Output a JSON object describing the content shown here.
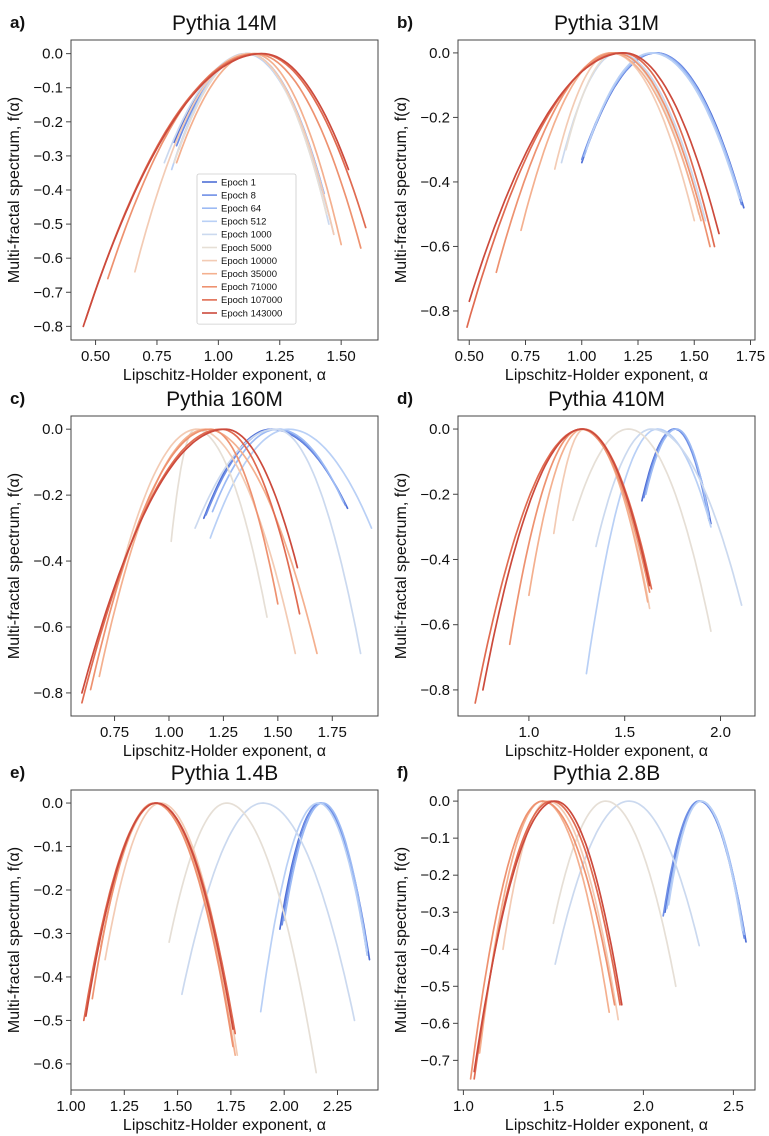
{
  "figure": {
    "legend_entries": [
      {
        "label": "Epoch 1",
        "color": "#4f6fd6"
      },
      {
        "label": "Epoch 8",
        "color": "#6f8fe6"
      },
      {
        "label": "Epoch 64",
        "color": "#9cbaf4"
      },
      {
        "label": "Epoch 512",
        "color": "#b9d0f6"
      },
      {
        "label": "Epoch 1000",
        "color": "#cbd9ef"
      },
      {
        "label": "Epoch 5000",
        "color": "#e6dfd6"
      },
      {
        "label": "Epoch 10000",
        "color": "#f3cbb4"
      },
      {
        "label": "Epoch 35000",
        "color": "#f4b08f"
      },
      {
        "label": "Epoch 71000",
        "color": "#ee9270"
      },
      {
        "label": "Epoch 107000",
        "color": "#e06b51"
      },
      {
        "label": "Epoch 143000",
        "color": "#cc4a3c"
      }
    ],
    "legend_location": "lower-right"
  },
  "chart_data": [
    {
      "type": "line",
      "panel_label": "a)",
      "title": "Pythia 14M",
      "xlabel": "Lipschitz-Holder exponent, α",
      "ylabel": "Multi-fractal spectrum, f(α)",
      "xlim": [
        0.4,
        1.65
      ],
      "ylim": [
        -0.84,
        0.04
      ],
      "xticks": [
        0.5,
        0.75,
        1.0,
        1.25,
        1.5
      ],
      "xtick_labels": [
        "0.50",
        "0.75",
        "1.00",
        "1.25",
        "1.50"
      ],
      "yticks": [
        0.0,
        -0.1,
        -0.2,
        -0.3,
        -0.4,
        -0.5,
        -0.6,
        -0.7,
        -0.8
      ],
      "ytick_labels": [
        "0.0",
        "−0.1",
        "−0.2",
        "−0.3",
        "−0.4",
        "−0.5",
        "−0.6",
        "−0.7",
        "−0.8"
      ],
      "grid": false,
      "legend": true,
      "series": [
        {
          "name": "Epoch 1",
          "a0": 1.12,
          "left": [
            0.82,
            -0.26
          ],
          "right": [
            1.43,
            -0.41
          ]
        },
        {
          "name": "Epoch 8",
          "a0": 1.12,
          "left": [
            0.83,
            -0.27
          ],
          "right": [
            1.42,
            -0.4
          ]
        },
        {
          "name": "Epoch 64",
          "a0": 1.12,
          "left": [
            0.84,
            -0.28
          ],
          "right": [
            1.43,
            -0.41
          ]
        },
        {
          "name": "Epoch 512",
          "a0": 1.11,
          "left": [
            0.81,
            -0.34
          ],
          "right": [
            1.47,
            -0.53
          ]
        },
        {
          "name": "Epoch 1000",
          "a0": 1.12,
          "left": [
            0.78,
            -0.32
          ],
          "right": [
            1.45,
            -0.5
          ]
        },
        {
          "name": "Epoch 5000",
          "a0": 1.12,
          "left": [
            0.82,
            -0.32
          ],
          "right": [
            1.44,
            -0.47
          ]
        },
        {
          "name": "Epoch 10000",
          "a0": 1.12,
          "left": [
            0.66,
            -0.64
          ],
          "right": [
            1.47,
            -0.53
          ]
        },
        {
          "name": "Epoch 35000",
          "a0": 1.14,
          "left": [
            0.83,
            -0.32
          ],
          "right": [
            1.5,
            -0.56
          ]
        },
        {
          "name": "Epoch 71000",
          "a0": 1.15,
          "left": [
            0.55,
            -0.66
          ],
          "right": [
            1.58,
            -0.57
          ]
        },
        {
          "name": "Epoch 107000",
          "a0": 1.17,
          "left": [
            0.46,
            -0.78
          ],
          "right": [
            1.6,
            -0.51
          ]
        },
        {
          "name": "Epoch 143000",
          "a0": 1.18,
          "left": [
            0.45,
            -0.8
          ],
          "right": [
            1.53,
            -0.34
          ]
        }
      ]
    },
    {
      "type": "line",
      "panel_label": "b)",
      "title": "Pythia 31M",
      "xlabel": "Lipschitz-Holder exponent, α",
      "ylabel": "Multi-fractal spectrum, f(α)",
      "xlim": [
        0.45,
        1.77
      ],
      "ylim": [
        -0.89,
        0.04
      ],
      "xticks": [
        0.5,
        0.75,
        1.0,
        1.25,
        1.5,
        1.75
      ],
      "xtick_labels": [
        "0.50",
        "0.75",
        "1.00",
        "1.25",
        "1.50",
        "1.75"
      ],
      "yticks": [
        0.0,
        -0.2,
        -0.4,
        -0.6,
        -0.8
      ],
      "ytick_labels": [
        "0.0",
        "−0.2",
        "−0.4",
        "−0.6",
        "−0.8"
      ],
      "grid": false,
      "legend": false,
      "series": [
        {
          "name": "Epoch 1",
          "a0": 1.33,
          "left": [
            1.0,
            -0.34
          ],
          "right": [
            1.72,
            -0.48
          ]
        },
        {
          "name": "Epoch 8",
          "a0": 1.33,
          "left": [
            1.0,
            -0.33
          ],
          "right": [
            1.71,
            -0.47
          ]
        },
        {
          "name": "Epoch 64",
          "a0": 1.32,
          "left": [
            1.01,
            -0.32
          ],
          "right": [
            1.71,
            -0.46
          ]
        },
        {
          "name": "Epoch 512",
          "a0": 1.31,
          "left": [
            1.02,
            -0.3
          ],
          "right": [
            1.7,
            -0.45
          ]
        },
        {
          "name": "Epoch 1000",
          "a0": 1.16,
          "left": [
            0.91,
            -0.34
          ],
          "right": [
            1.55,
            -0.52
          ]
        },
        {
          "name": "Epoch 5000",
          "a0": 1.15,
          "left": [
            0.93,
            -0.3
          ],
          "right": [
            1.52,
            -0.5
          ]
        },
        {
          "name": "Epoch 10000",
          "a0": 1.13,
          "left": [
            0.88,
            -0.36
          ],
          "right": [
            1.5,
            -0.52
          ]
        },
        {
          "name": "Epoch 35000",
          "a0": 1.13,
          "left": [
            0.73,
            -0.55
          ],
          "right": [
            1.53,
            -0.52
          ]
        },
        {
          "name": "Epoch 71000",
          "a0": 1.15,
          "left": [
            0.62,
            -0.68
          ],
          "right": [
            1.57,
            -0.6
          ]
        },
        {
          "name": "Epoch 107000",
          "a0": 1.18,
          "left": [
            0.49,
            -0.85
          ],
          "right": [
            1.59,
            -0.6
          ]
        },
        {
          "name": "Epoch 143000",
          "a0": 1.19,
          "left": [
            0.5,
            -0.77
          ],
          "right": [
            1.61,
            -0.56
          ]
        }
      ]
    },
    {
      "type": "line",
      "panel_label": "c)",
      "title": "Pythia 160M",
      "xlabel": "Lipschitz-Holder exponent, α",
      "ylabel": "Multi-fractal spectrum, f(α)",
      "xlim": [
        0.55,
        1.96
      ],
      "ylim": [
        -0.87,
        0.04
      ],
      "xticks": [
        0.75,
        1.0,
        1.25,
        1.5,
        1.75
      ],
      "xtick_labels": [
        "0.75",
        "1.00",
        "1.25",
        "1.50",
        "1.75"
      ],
      "yticks": [
        0.0,
        -0.2,
        -0.4,
        -0.6,
        -0.8
      ],
      "ytick_labels": [
        "0.0",
        "−0.2",
        "−0.4",
        "−0.6",
        "−0.8"
      ],
      "grid": false,
      "legend": false,
      "series": [
        {
          "name": "Epoch 1",
          "a0": 1.47,
          "left": [
            1.16,
            -0.27
          ],
          "right": [
            1.82,
            -0.24
          ]
        },
        {
          "name": "Epoch 8",
          "a0": 1.48,
          "left": [
            1.17,
            -0.26
          ],
          "right": [
            1.81,
            -0.23
          ]
        },
        {
          "name": "Epoch 64",
          "a0": 1.5,
          "left": [
            1.2,
            -0.25
          ],
          "right": [
            1.8,
            -0.22
          ]
        },
        {
          "name": "Epoch 512",
          "a0": 1.55,
          "left": [
            1.19,
            -0.33
          ],
          "right": [
            1.93,
            -0.3
          ]
        },
        {
          "name": "Epoch 1000",
          "a0": 1.49,
          "left": [
            1.12,
            -0.3
          ],
          "right": [
            1.88,
            -0.68
          ]
        },
        {
          "name": "Epoch 5000",
          "a0": 1.12,
          "left": [
            1.01,
            -0.34
          ],
          "right": [
            1.45,
            -0.57
          ]
        },
        {
          "name": "Epoch 10000",
          "a0": 1.13,
          "left": [
            0.78,
            -0.43
          ],
          "right": [
            1.58,
            -0.68
          ]
        },
        {
          "name": "Epoch 35000",
          "a0": 1.17,
          "left": [
            0.68,
            -0.75
          ],
          "right": [
            1.68,
            -0.68
          ]
        },
        {
          "name": "Epoch 71000",
          "a0": 1.19,
          "left": [
            0.64,
            -0.79
          ],
          "right": [
            1.5,
            -0.53
          ]
        },
        {
          "name": "Epoch 107000",
          "a0": 1.24,
          "left": [
            0.6,
            -0.83
          ],
          "right": [
            1.6,
            -0.56
          ]
        },
        {
          "name": "Epoch 143000",
          "a0": 1.26,
          "left": [
            0.6,
            -0.8
          ],
          "right": [
            1.59,
            -0.42
          ]
        }
      ]
    },
    {
      "type": "line",
      "panel_label": "d)",
      "title": "Pythia 410M",
      "xlabel": "Lipschitz-Holder exponent, α",
      "ylabel": "Multi-fractal spectrum, f(α)",
      "xlim": [
        0.63,
        2.18
      ],
      "ylim": [
        -0.88,
        0.04
      ],
      "xticks": [
        1.0,
        1.5,
        2.0
      ],
      "xtick_labels": [
        "1.0",
        "1.5",
        "2.0"
      ],
      "yticks": [
        0.0,
        -0.2,
        -0.4,
        -0.6,
        -0.8
      ],
      "ytick_labels": [
        "0.0",
        "−0.2",
        "−0.4",
        "−0.6",
        "−0.8"
      ],
      "grid": false,
      "legend": false,
      "series": [
        {
          "name": "Epoch 1",
          "a0": 1.76,
          "left": [
            1.59,
            -0.22
          ],
          "right": [
            1.95,
            -0.29
          ]
        },
        {
          "name": "Epoch 8",
          "a0": 1.76,
          "left": [
            1.6,
            -0.21
          ],
          "right": [
            1.94,
            -0.28
          ]
        },
        {
          "name": "Epoch 64",
          "a0": 1.77,
          "left": [
            1.61,
            -0.2
          ],
          "right": [
            1.94,
            -0.27
          ]
        },
        {
          "name": "Epoch 512",
          "a0": 1.67,
          "left": [
            1.3,
            -0.75
          ],
          "right": [
            1.95,
            -0.3
          ]
        },
        {
          "name": "Epoch 1000",
          "a0": 1.64,
          "left": [
            1.35,
            -0.36
          ],
          "right": [
            2.11,
            -0.54
          ]
        },
        {
          "name": "Epoch 5000",
          "a0": 1.52,
          "left": [
            1.23,
            -0.28
          ],
          "right": [
            1.95,
            -0.62
          ]
        },
        {
          "name": "Epoch 10000",
          "a0": 1.29,
          "left": [
            1.13,
            -0.32
          ],
          "right": [
            1.63,
            -0.55
          ]
        },
        {
          "name": "Epoch 35000",
          "a0": 1.28,
          "left": [
            1.0,
            -0.51
          ],
          "right": [
            1.62,
            -0.53
          ]
        },
        {
          "name": "Epoch 71000",
          "a0": 1.27,
          "left": [
            0.9,
            -0.66
          ],
          "right": [
            1.63,
            -0.5
          ]
        },
        {
          "name": "Epoch 107000",
          "a0": 1.28,
          "left": [
            0.72,
            -0.84
          ],
          "right": [
            1.64,
            -0.49
          ]
        },
        {
          "name": "Epoch 143000",
          "a0": 1.28,
          "left": [
            0.76,
            -0.8
          ],
          "right": [
            1.63,
            -0.48
          ]
        }
      ]
    },
    {
      "type": "line",
      "panel_label": "e)",
      "title": "Pythia 1.4B",
      "xlabel": "Lipschitz-Holder exponent, α",
      "ylabel": "Multi-fractal spectrum, f(α)",
      "xlim": [
        1.0,
        2.44
      ],
      "ylim": [
        -0.66,
        0.03
      ],
      "xticks": [
        1.0,
        1.25,
        1.5,
        1.75,
        2.0,
        2.25
      ],
      "xtick_labels": [
        "1.00",
        "1.25",
        "1.50",
        "1.75",
        "2.00",
        "2.25"
      ],
      "yticks": [
        0.0,
        -0.1,
        -0.2,
        -0.3,
        -0.4,
        -0.5,
        -0.6
      ],
      "ytick_labels": [
        "0.0",
        "−0.1",
        "−0.2",
        "−0.3",
        "−0.4",
        "−0.5",
        "−0.6"
      ],
      "grid": false,
      "legend": false,
      "series": [
        {
          "name": "Epoch 1",
          "a0": 2.17,
          "left": [
            1.98,
            -0.29
          ],
          "right": [
            2.4,
            -0.36
          ]
        },
        {
          "name": "Epoch 8",
          "a0": 2.17,
          "left": [
            1.99,
            -0.28
          ],
          "right": [
            2.39,
            -0.35
          ]
        },
        {
          "name": "Epoch 64",
          "a0": 2.18,
          "left": [
            2.0,
            -0.27
          ],
          "right": [
            2.39,
            -0.34
          ]
        },
        {
          "name": "Epoch 512",
          "a0": 2.16,
          "left": [
            1.89,
            -0.48
          ],
          "right": [
            2.39,
            -0.35
          ]
        },
        {
          "name": "Epoch 1000",
          "a0": 1.9,
          "left": [
            1.52,
            -0.44
          ],
          "right": [
            2.33,
            -0.5
          ]
        },
        {
          "name": "Epoch 5000",
          "a0": 1.73,
          "left": [
            1.46,
            -0.32
          ],
          "right": [
            2.15,
            -0.62
          ]
        },
        {
          "name": "Epoch 10000",
          "a0": 1.42,
          "left": [
            1.16,
            -0.36
          ],
          "right": [
            1.78,
            -0.58
          ]
        },
        {
          "name": "Epoch 35000",
          "a0": 1.4,
          "left": [
            1.14,
            -0.33
          ],
          "right": [
            1.77,
            -0.58
          ]
        },
        {
          "name": "Epoch 71000",
          "a0": 1.39,
          "left": [
            1.1,
            -0.45
          ],
          "right": [
            1.76,
            -0.56
          ]
        },
        {
          "name": "Epoch 107000",
          "a0": 1.4,
          "left": [
            1.06,
            -0.5
          ],
          "right": [
            1.77,
            -0.53
          ]
        },
        {
          "name": "Epoch 143000",
          "a0": 1.4,
          "left": [
            1.07,
            -0.49
          ],
          "right": [
            1.76,
            -0.52
          ]
        }
      ]
    },
    {
      "type": "line",
      "panel_label": "f)",
      "title": "Pythia 2.8B",
      "xlabel": "Lipschitz-Holder exponent, α",
      "ylabel": "Multi-fractal spectrum, f(α)",
      "xlim": [
        0.97,
        2.62
      ],
      "ylim": [
        -0.78,
        0.03
      ],
      "xticks": [
        1.0,
        1.5,
        2.0,
        2.5
      ],
      "xtick_labels": [
        "1.0",
        "1.5",
        "2.0",
        "2.5"
      ],
      "yticks": [
        0.0,
        -0.1,
        -0.2,
        -0.3,
        -0.4,
        -0.5,
        -0.6,
        -0.7
      ],
      "ytick_labels": [
        "0.0",
        "−0.1",
        "−0.2",
        "−0.3",
        "−0.4",
        "−0.5",
        "−0.6",
        "−0.7"
      ],
      "grid": false,
      "legend": false,
      "series": [
        {
          "name": "Epoch 1",
          "a0": 2.31,
          "left": [
            2.12,
            -0.3
          ],
          "right": [
            2.57,
            -0.38
          ]
        },
        {
          "name": "Epoch 8",
          "a0": 2.31,
          "left": [
            2.11,
            -0.31
          ],
          "right": [
            2.56,
            -0.37
          ]
        },
        {
          "name": "Epoch 64",
          "a0": 2.32,
          "left": [
            2.13,
            -0.29
          ],
          "right": [
            2.56,
            -0.36
          ]
        },
        {
          "name": "Epoch 512",
          "a0": 2.32,
          "left": [
            2.14,
            -0.28
          ],
          "right": [
            2.55,
            -0.35
          ]
        },
        {
          "name": "Epoch 1000",
          "a0": 1.92,
          "left": [
            1.51,
            -0.44
          ],
          "right": [
            2.31,
            -0.39
          ]
        },
        {
          "name": "Epoch 5000",
          "a0": 1.79,
          "left": [
            1.5,
            -0.33
          ],
          "right": [
            2.18,
            -0.5
          ]
        },
        {
          "name": "Epoch 10000",
          "a0": 1.47,
          "left": [
            1.22,
            -0.4
          ],
          "right": [
            1.86,
            -0.59
          ]
        },
        {
          "name": "Epoch 35000",
          "a0": 1.44,
          "left": [
            1.09,
            -0.68
          ],
          "right": [
            1.81,
            -0.57
          ]
        },
        {
          "name": "Epoch 71000",
          "a0": 1.44,
          "left": [
            1.04,
            -0.75
          ],
          "right": [
            1.84,
            -0.55
          ]
        },
        {
          "name": "Epoch 107000",
          "a0": 1.49,
          "left": [
            1.06,
            -0.75
          ],
          "right": [
            1.87,
            -0.55
          ]
        },
        {
          "name": "Epoch 143000",
          "a0": 1.51,
          "left": [
            1.06,
            -0.73
          ],
          "right": [
            1.88,
            -0.55
          ]
        }
      ]
    }
  ]
}
